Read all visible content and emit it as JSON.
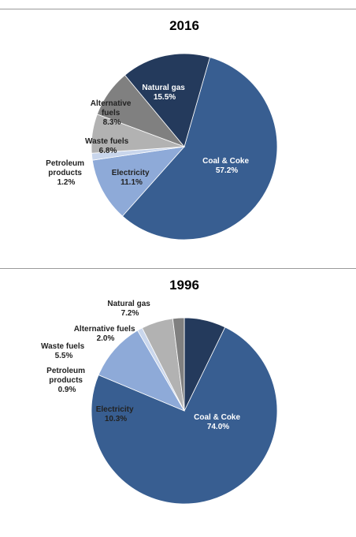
{
  "chart_data": [
    {
      "type": "pie",
      "title": "2016",
      "start_angle_deg": 16,
      "slices": [
        {
          "label": "Coal & Coke",
          "value": 57.2,
          "value_label": "57.2%",
          "color": "#385E91"
        },
        {
          "label": "Electricity",
          "value": 11.1,
          "value_label": "11.1%",
          "color": "#8EAAD8"
        },
        {
          "label": "Petroleum products",
          "value": 1.2,
          "value_label": "1.2%",
          "color": "#C9D6EC"
        },
        {
          "label": "Waste fuels",
          "value": 6.8,
          "value_label": "6.8%",
          "color": "#B2B2B2"
        },
        {
          "label": "Alternative fuels",
          "value": 8.3,
          "value_label": "8.3%",
          "color": "#808080"
        },
        {
          "label": "Natural gas",
          "value": 15.5,
          "value_label": "15.5%",
          "color": "#243A5C"
        }
      ]
    },
    {
      "type": "pie",
      "title": "1996",
      "start_angle_deg": 26,
      "slices": [
        {
          "label": "Coal & Coke",
          "value": 74.0,
          "value_label": "74.0%",
          "color": "#385E91"
        },
        {
          "label": "Electricity",
          "value": 10.3,
          "value_label": "10.3%",
          "color": "#8EAAD8"
        },
        {
          "label": "Petroleum products",
          "value": 0.9,
          "value_label": "0.9%",
          "color": "#C9D6EC"
        },
        {
          "label": "Waste fuels",
          "value": 5.5,
          "value_label": "5.5%",
          "color": "#B2B2B2"
        },
        {
          "label": "Alternative fuels",
          "value": 2.0,
          "value_label": "2.0%",
          "color": "#808080"
        },
        {
          "label": "Natural gas",
          "value": 7.2,
          "value_label": "7.2%",
          "color": "#243A5C"
        }
      ]
    }
  ]
}
